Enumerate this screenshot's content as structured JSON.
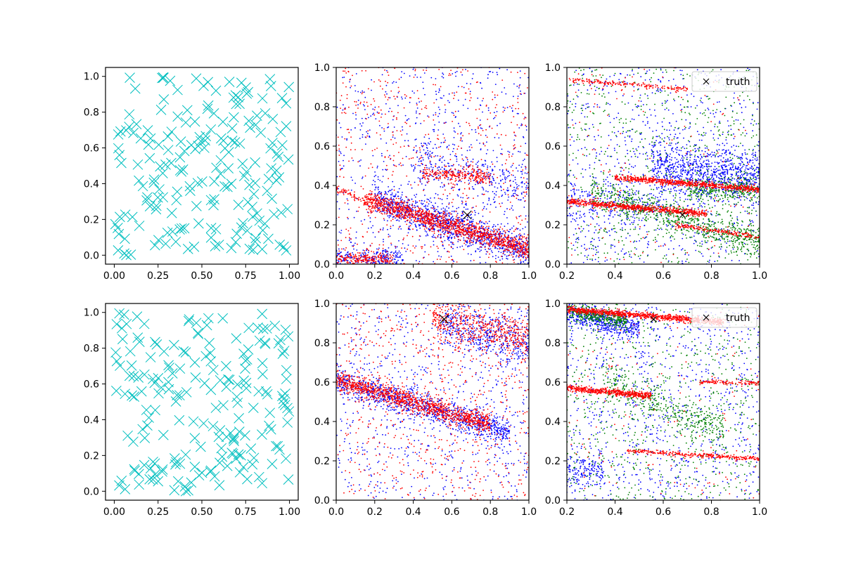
{
  "chart_data": [
    {
      "type": "scatter",
      "row": 0,
      "col": 0,
      "xlim": [
        -0.05,
        1.05
      ],
      "ylim": [
        -0.05,
        1.05
      ],
      "xticks": [
        0.0,
        0.25,
        0.5,
        0.75,
        1.0
      ],
      "xtick_labels": [
        "0.00",
        "0.25",
        "0.50",
        "0.75",
        "1.00"
      ],
      "yticks": [
        0.0,
        0.2,
        0.4,
        0.6,
        0.8,
        1.0
      ],
      "ytick_labels": [
        "0.0",
        "0.2",
        "0.4",
        "0.6",
        "0.8",
        "1.0"
      ],
      "series": [
        {
          "name": "samples",
          "marker": "x",
          "color": "#00bfbf",
          "random_points": 200,
          "seed": 11
        }
      ]
    },
    {
      "type": "scatter",
      "row": 0,
      "col": 1,
      "xlim": [
        0.0,
        1.0
      ],
      "ylim": [
        0.0,
        1.0
      ],
      "xticks": [
        0.0,
        0.2,
        0.4,
        0.6,
        0.8,
        1.0
      ],
      "xtick_labels": [
        "0.0",
        "0.2",
        "0.4",
        "0.6",
        "0.8",
        "1.0"
      ],
      "yticks": [
        0.0,
        0.2,
        0.4,
        0.6,
        0.8,
        1.0
      ],
      "ytick_labels": [
        "0.0",
        "0.2",
        "0.4",
        "0.6",
        "0.8",
        "1.0"
      ],
      "series": [
        {
          "name": "blue",
          "color": "#0000ff",
          "seed": 21,
          "uniform": 700,
          "bands": [
            {
              "x": [
                0.2,
                1.0
              ],
              "y0": 0.33,
              "slope": -0.33,
              "spread": 0.045,
              "n": 1100
            },
            {
              "x": [
                0.4,
                1.0
              ],
              "y0": 0.55,
              "slope": -0.3,
              "spread": 0.06,
              "n": 300
            },
            {
              "x": [
                0.0,
                0.35
              ],
              "y0": 0.03,
              "slope": 0.0,
              "spread": 0.025,
              "n": 220
            }
          ]
        },
        {
          "name": "red",
          "color": "#ff0000",
          "seed": 22,
          "uniform": 600,
          "bands": [
            {
              "x": [
                0.15,
                1.0
              ],
              "y0": 0.33,
              "slope": -0.3,
              "spread": 0.025,
              "n": 1300
            },
            {
              "x": [
                0.45,
                0.8
              ],
              "y0": 0.46,
              "slope": -0.05,
              "spread": 0.02,
              "n": 260
            },
            {
              "x": [
                0.0,
                0.3
              ],
              "y0": 0.03,
              "slope": -0.02,
              "spread": 0.015,
              "n": 200
            },
            {
              "x": [
                0.0,
                0.15
              ],
              "y0": 0.38,
              "slope": -0.4,
              "spread": 0.01,
              "n": 60
            }
          ]
        }
      ],
      "truth": {
        "x": 0.68,
        "y": 0.25
      }
    },
    {
      "type": "scatter",
      "row": 0,
      "col": 2,
      "xlim": [
        0.2,
        1.0
      ],
      "ylim": [
        0.0,
        1.0
      ],
      "xticks": [
        0.2,
        0.4,
        0.6,
        0.8,
        1.0
      ],
      "xtick_labels": [
        "0.2",
        "0.4",
        "0.6",
        "0.8",
        "1.0"
      ],
      "yticks": [
        0.0,
        0.2,
        0.4,
        0.6,
        0.8,
        1.0
      ],
      "ytick_labels": [
        "0.0",
        "0.2",
        "0.4",
        "0.6",
        "0.8",
        "1.0"
      ],
      "series": [
        {
          "name": "blue",
          "color": "#0000ff",
          "seed": 31,
          "uniform": 800,
          "bands": [
            {
              "x": [
                0.55,
                1.0
              ],
              "y0": 0.5,
              "slope": -0.15,
              "spread": 0.07,
              "n": 900
            },
            {
              "x": [
                0.2,
                0.6
              ],
              "y0": 0.3,
              "slope": 0.0,
              "spread": 0.06,
              "n": 250
            }
          ]
        },
        {
          "name": "green",
          "color": "#008000",
          "seed": 32,
          "uniform": 700,
          "bands": [
            {
              "x": [
                0.3,
                1.0
              ],
              "y0": 0.36,
              "slope": -0.35,
              "spread": 0.04,
              "n": 700
            },
            {
              "x": [
                0.7,
                1.0
              ],
              "y0": 0.38,
              "slope": 0.0,
              "spread": 0.03,
              "n": 300
            }
          ]
        },
        {
          "name": "red",
          "color": "#ff0000",
          "seed": 33,
          "uniform": 150,
          "bands": [
            {
              "x": [
                0.2,
                0.78
              ],
              "y0": 0.32,
              "slope": -0.11,
              "spread": 0.008,
              "n": 700
            },
            {
              "x": [
                0.4,
                1.0
              ],
              "y0": 0.44,
              "slope": -0.1,
              "spread": 0.008,
              "n": 700
            },
            {
              "x": [
                0.2,
                0.7
              ],
              "y0": 0.94,
              "slope": -0.1,
              "spread": 0.006,
              "n": 180
            },
            {
              "x": [
                0.65,
                1.0
              ],
              "y0": 0.2,
              "slope": -0.18,
              "spread": 0.006,
              "n": 180
            }
          ]
        }
      ],
      "truth": {
        "x": 0.68,
        "y": 0.25
      },
      "legend": {
        "label": "truth",
        "placement": "upper right"
      }
    },
    {
      "type": "scatter",
      "row": 1,
      "col": 0,
      "xlim": [
        -0.05,
        1.05
      ],
      "ylim": [
        -0.05,
        1.05
      ],
      "xticks": [
        0.0,
        0.25,
        0.5,
        0.75,
        1.0
      ],
      "xtick_labels": [
        "0.00",
        "0.25",
        "0.50",
        "0.75",
        "1.00"
      ],
      "yticks": [
        0.0,
        0.2,
        0.4,
        0.6,
        0.8,
        1.0
      ],
      "ytick_labels": [
        "0.0",
        "0.2",
        "0.4",
        "0.6",
        "0.8",
        "1.0"
      ],
      "series": [
        {
          "name": "samples",
          "marker": "x",
          "color": "#00bfbf",
          "random_points": 200,
          "seed": 17
        }
      ]
    },
    {
      "type": "scatter",
      "row": 1,
      "col": 1,
      "xlim": [
        0.0,
        1.0
      ],
      "ylim": [
        0.0,
        1.0
      ],
      "xticks": [
        0.0,
        0.2,
        0.4,
        0.6,
        0.8,
        1.0
      ],
      "xtick_labels": [
        "0.0",
        "0.2",
        "0.4",
        "0.6",
        "0.8",
        "1.0"
      ],
      "yticks": [
        0.0,
        0.2,
        0.4,
        0.6,
        0.8,
        1.0
      ],
      "ytick_labels": [
        "0.0",
        "0.2",
        "0.4",
        "0.6",
        "0.8",
        "1.0"
      ],
      "series": [
        {
          "name": "blue",
          "color": "#0000ff",
          "seed": 41,
          "uniform": 700,
          "bands": [
            {
              "x": [
                0.0,
                0.9
              ],
              "y0": 0.61,
              "slope": -0.3,
              "spread": 0.035,
              "n": 1000
            },
            {
              "x": [
                0.55,
                1.0
              ],
              "y0": 0.9,
              "slope": -0.25,
              "spread": 0.06,
              "n": 450
            }
          ]
        },
        {
          "name": "red",
          "color": "#ff0000",
          "seed": 42,
          "uniform": 700,
          "bands": [
            {
              "x": [
                0.0,
                0.8
              ],
              "y0": 0.61,
              "slope": -0.28,
              "spread": 0.025,
              "n": 1100
            },
            {
              "x": [
                0.5,
                1.0
              ],
              "y0": 0.92,
              "slope": -0.2,
              "spread": 0.05,
              "n": 500
            }
          ]
        }
      ],
      "truth": {
        "x": 0.56,
        "y": 0.92
      }
    },
    {
      "type": "scatter",
      "row": 1,
      "col": 2,
      "xlim": [
        0.2,
        1.0
      ],
      "ylim": [
        0.0,
        1.0
      ],
      "xticks": [
        0.2,
        0.4,
        0.6,
        0.8,
        1.0
      ],
      "xtick_labels": [
        "0.2",
        "0.4",
        "0.6",
        "0.8",
        "1.0"
      ],
      "yticks": [
        0.0,
        0.2,
        0.4,
        0.6,
        0.8,
        1.0
      ],
      "ytick_labels": [
        "0.0",
        "0.2",
        "0.4",
        "0.6",
        "0.8",
        "1.0"
      ],
      "series": [
        {
          "name": "blue",
          "color": "#0000ff",
          "seed": 51,
          "uniform": 900,
          "bands": [
            {
              "x": [
                0.2,
                0.5
              ],
              "y0": 0.95,
              "slope": -0.3,
              "spread": 0.03,
              "n": 450
            },
            {
              "x": [
                0.2,
                0.35
              ],
              "y0": 0.15,
              "slope": 0.0,
              "spread": 0.04,
              "n": 150
            }
          ]
        },
        {
          "name": "green",
          "color": "#008000",
          "seed": 52,
          "uniform": 700,
          "bands": [
            {
              "x": [
                0.2,
                0.45
              ],
              "y0": 0.96,
              "slope": -0.2,
              "spread": 0.02,
              "n": 350
            },
            {
              "x": [
                0.35,
                0.85
              ],
              "y0": 0.6,
              "slope": -0.5,
              "spread": 0.05,
              "n": 400
            }
          ]
        },
        {
          "name": "red",
          "color": "#ff0000",
          "seed": 53,
          "uniform": 150,
          "bands": [
            {
              "x": [
                0.2,
                0.85
              ],
              "y0": 0.97,
              "slope": -0.1,
              "spread": 0.008,
              "n": 900
            },
            {
              "x": [
                0.2,
                0.55
              ],
              "y0": 0.57,
              "slope": -0.11,
              "spread": 0.008,
              "n": 500
            },
            {
              "x": [
                0.75,
                1.0
              ],
              "y0": 0.6,
              "slope": -0.02,
              "spread": 0.006,
              "n": 120
            },
            {
              "x": [
                0.45,
                1.0
              ],
              "y0": 0.25,
              "slope": -0.07,
              "spread": 0.006,
              "n": 300
            }
          ]
        }
      ],
      "truth": {
        "x": 0.56,
        "y": 0.92
      },
      "legend": {
        "label": "truth",
        "placement": "upper right"
      }
    }
  ]
}
